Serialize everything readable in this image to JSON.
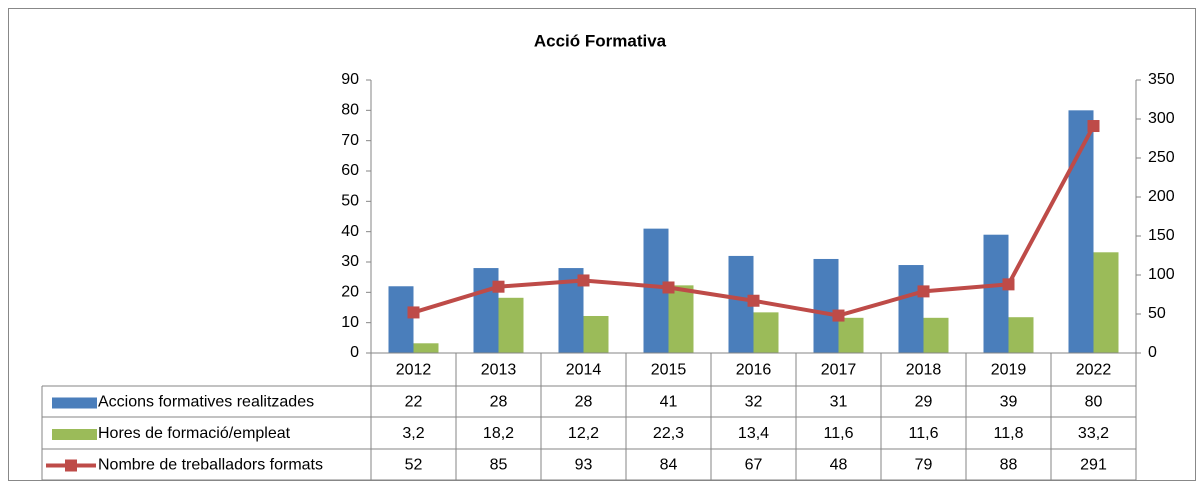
{
  "chart_data": {
    "type": "bar",
    "title": "Acció Formativa",
    "categories": [
      "2012",
      "2013",
      "2014",
      "2015",
      "2016",
      "2017",
      "2018",
      "2019",
      "2022"
    ],
    "series": [
      {
        "name": "Accions formatives realitzades",
        "type": "bar",
        "color": "#4a7ebb",
        "values": [
          22,
          28,
          28,
          41,
          32,
          31,
          29,
          39,
          80
        ]
      },
      {
        "name": "Hores de formació/empleat",
        "type": "bar",
        "color": "#9bbb59",
        "values": [
          3.2,
          18.2,
          12.2,
          22.3,
          13.4,
          11.6,
          11.6,
          11.8,
          33.2
        ],
        "value_labels": [
          "3,2",
          "18,2",
          "12,2",
          "22,3",
          "13,4",
          "11,6",
          "11,6",
          "11,8",
          "33,2"
        ]
      },
      {
        "name": "Nombre de treballadors formats",
        "type": "line",
        "axis": "y2",
        "color": "#be4b48",
        "values": [
          52,
          85,
          93,
          84,
          67,
          48,
          79,
          88,
          291
        ]
      }
    ],
    "ylim": [
      0,
      90
    ],
    "yticks": [
      0,
      10,
      20,
      30,
      40,
      50,
      60,
      70,
      80,
      90
    ],
    "y2lim": [
      0,
      350
    ],
    "y2ticks": [
      0,
      50,
      100,
      150,
      200,
      250,
      300,
      350
    ],
    "grid": false,
    "data_table": true
  }
}
